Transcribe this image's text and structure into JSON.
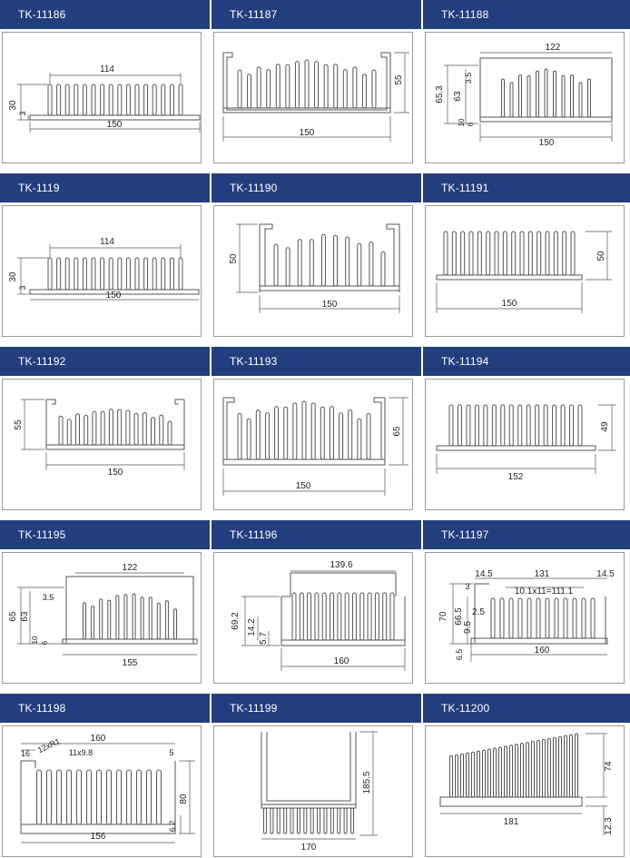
{
  "colors": {
    "header": "#233e7e",
    "header_text": "#ffffff",
    "line": "#555555",
    "frame": "#9a9a9a"
  },
  "panels": [
    {
      "id": "TK-11186",
      "dims": {
        "a": "114",
        "b": "30",
        "c": "3",
        "d": "150"
      }
    },
    {
      "id": "TK-11187",
      "dims": {
        "a": "55",
        "b": "150"
      }
    },
    {
      "id": "TK-11188",
      "dims": {
        "a": "122",
        "b": "3.5",
        "c": "65.3",
        "d": "63",
        "e": "10",
        "f": "6",
        "g": "150"
      }
    },
    {
      "id": "TK-1119",
      "dims": {
        "a": "114",
        "b": "30",
        "c": "3",
        "d": "150"
      }
    },
    {
      "id": "TK-11190",
      "dims": {
        "a": "50",
        "b": "150"
      }
    },
    {
      "id": "TK-11191",
      "dims": {
        "a": "50",
        "b": "150"
      }
    },
    {
      "id": "TK-11192",
      "dims": {
        "a": "55",
        "b": "150"
      }
    },
    {
      "id": "TK-11193",
      "dims": {
        "a": "65",
        "b": "150"
      }
    },
    {
      "id": "TK-11194",
      "dims": {
        "a": "49",
        "b": "152"
      }
    },
    {
      "id": "TK-11195",
      "dims": {
        "a": "122",
        "b": "3.5",
        "c": "65",
        "d": "63",
        "e": "10",
        "f": "6",
        "g": "155"
      }
    },
    {
      "id": "TK-11196",
      "dims": {
        "a": "139.6",
        "b": "69.2",
        "c": "14.2",
        "d": "5.7",
        "e": "160"
      }
    },
    {
      "id": "TK-11197",
      "dims": {
        "a": "14.5",
        "b": "131",
        "c": "14.5",
        "d": "10.1x11=111.1",
        "e": "3",
        "f": "70",
        "g": "66.5",
        "h": "2.5",
        "i": "9.5",
        "j": "6.5",
        "k": "160"
      }
    },
    {
      "id": "TK-11198",
      "dims": {
        "a": "160",
        "b": "16",
        "c": "12xR1",
        "d": "11x9.8",
        "e": "5",
        "f": "80",
        "g": "6.2",
        "h": "156"
      }
    },
    {
      "id": "TK-11199",
      "dims": {
        "a": "185.5",
        "b": "170"
      }
    },
    {
      "id": "TK-11200",
      "dims": {
        "a": "74",
        "b": "181",
        "c": "12.3"
      }
    }
  ]
}
